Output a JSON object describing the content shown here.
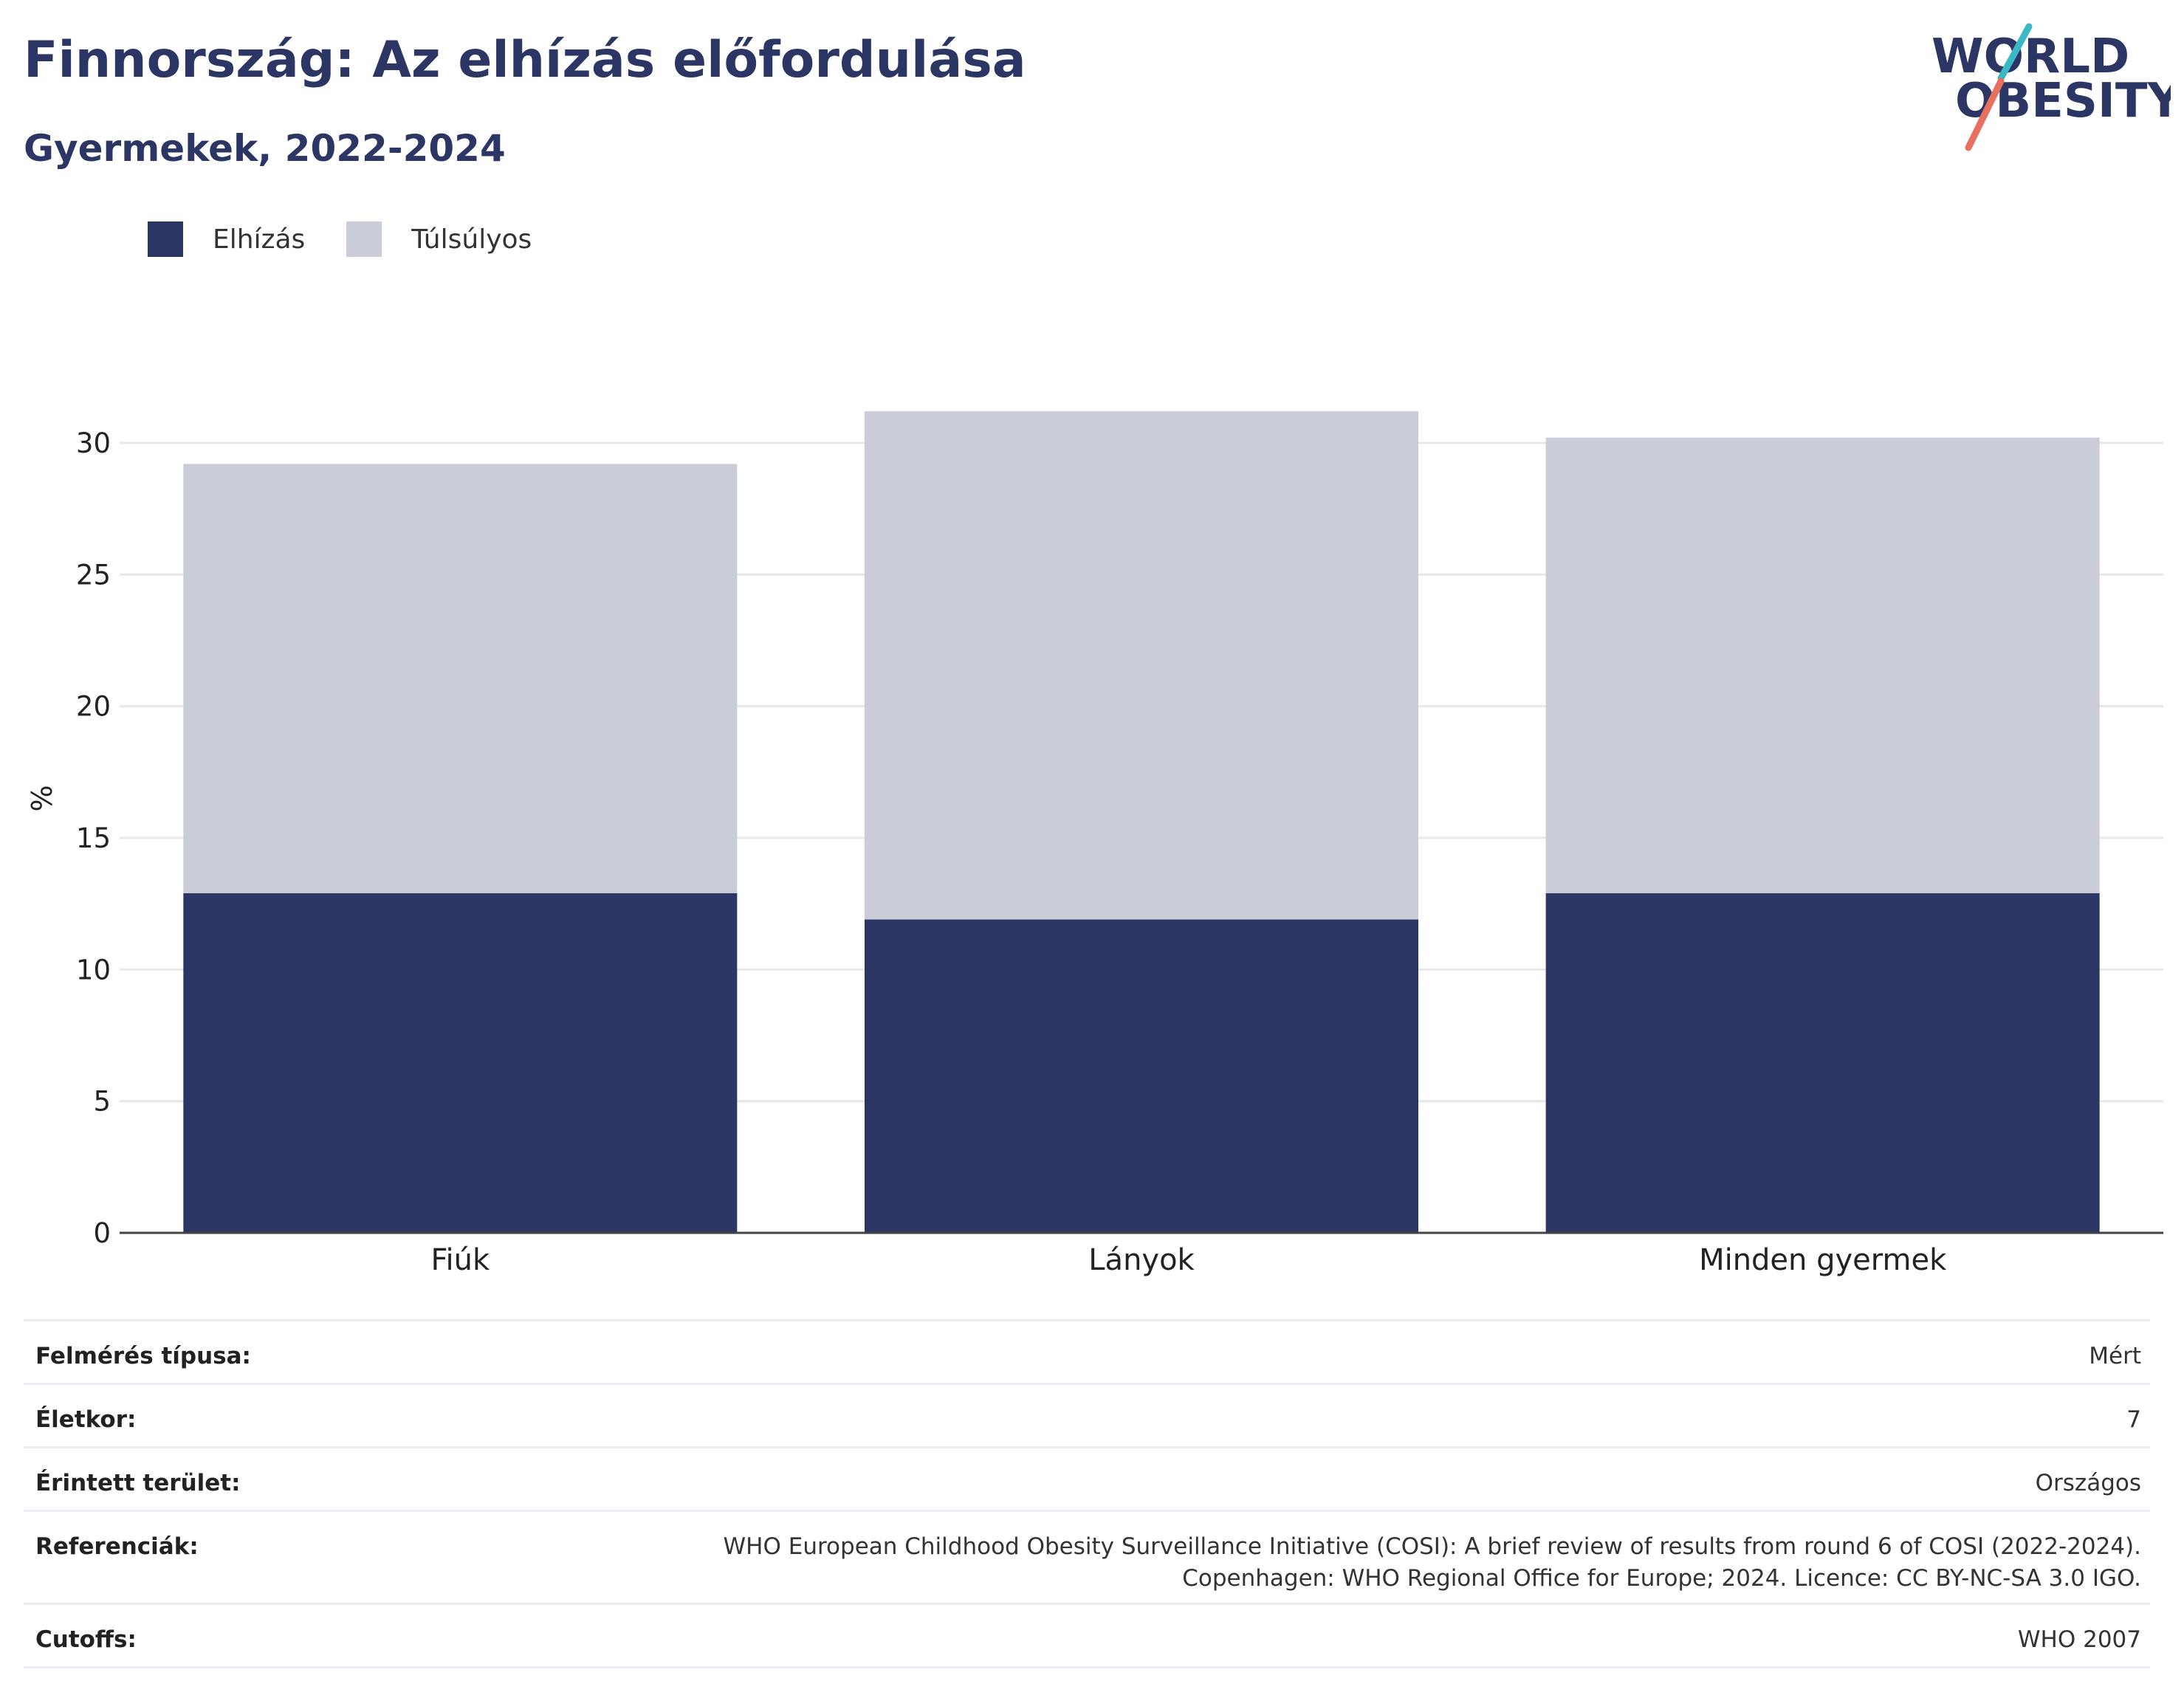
{
  "header": {
    "title": "Finnország: Az elhízás előfordulása",
    "subtitle": "Gyermekek, 2022-2024"
  },
  "logo": {
    "line1": "WORLD",
    "line2": "OBESITY",
    "accent_teal": "#3bb8c3",
    "accent_coral": "#e8705e"
  },
  "legend": {
    "items": [
      {
        "label": "Elhízás",
        "color": "#2b3664"
      },
      {
        "label": "Túlsúlyos",
        "color": "#cacdd8"
      }
    ]
  },
  "chart_data": {
    "type": "bar",
    "stacked": true,
    "categories": [
      "Fiúk",
      "Lányok",
      "Minden gyermek"
    ],
    "series": [
      {
        "name": "Elhízás",
        "color": "#2b3664",
        "values": [
          12.9,
          11.9,
          12.9
        ]
      },
      {
        "name": "Túlsúlyos",
        "color": "#cacdd8",
        "values": [
          16.3,
          19.3,
          17.3
        ]
      }
    ],
    "ylabel": "%",
    "xlabel": "",
    "ylim": [
      0,
      32
    ],
    "yticks": [
      0,
      5,
      10,
      15,
      20,
      25,
      30
    ],
    "grid": true,
    "legend_position": "top-left"
  },
  "info_table": {
    "rows": [
      {
        "key": "Felmérés típusa:",
        "value": "Mért"
      },
      {
        "key": "Életkor:",
        "value": "7"
      },
      {
        "key": "Érintett terület:",
        "value": "Országos"
      },
      {
        "key": "Referenciák:",
        "value_lines": [
          "WHO European Childhood Obesity Surveillance Initiative (COSI): A brief review of results from round 6 of COSI (2022-2024).",
          "Copenhagen: WHO Regional Office for Europe; 2024. Licence: CC BY-NC-SA 3.0 IGO."
        ]
      },
      {
        "key": "Cutoffs:",
        "value": "WHO 2007"
      }
    ]
  }
}
